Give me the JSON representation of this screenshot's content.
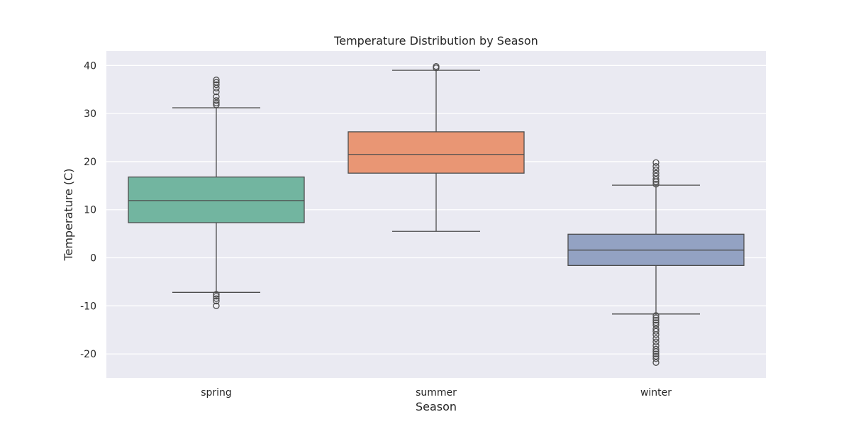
{
  "chart_data": {
    "type": "box",
    "title": "Temperature Distribution by Season",
    "xlabel": "Season",
    "ylabel": "Temperature (C)",
    "ylim": [
      -25,
      43
    ],
    "yticks": [
      -20,
      -10,
      0,
      10,
      20,
      30,
      40
    ],
    "grid": true,
    "categories": [
      "spring",
      "summer",
      "winter"
    ],
    "boxes": [
      {
        "category": "spring",
        "color": "#72b5a0",
        "whisker_low": -7.2,
        "q1": 7.3,
        "median": 11.9,
        "q3": 16.8,
        "whisker_high": 31.2,
        "outliers": [
          -10.0,
          -9.0,
          -8.5,
          -8.0,
          -7.6,
          31.8,
          32.2,
          32.7,
          33.5,
          34.5,
          35.3,
          36.0,
          36.5,
          37.0
        ]
      },
      {
        "category": "summer",
        "color": "#e99674",
        "whisker_low": 5.5,
        "q1": 17.6,
        "median": 21.5,
        "q3": 26.2,
        "whisker_high": 39.0,
        "outliers": [
          39.5,
          39.8
        ]
      },
      {
        "category": "winter",
        "color": "#93a2c3",
        "whisker_low": -11.7,
        "q1": -1.6,
        "median": 1.6,
        "q3": 4.9,
        "whisker_high": 15.1,
        "outliers": [
          -21.8,
          -21.0,
          -20.5,
          -20.0,
          -19.5,
          -19.0,
          -18.3,
          -17.5,
          -16.8,
          -16.0,
          -15.3,
          -14.8,
          -14.0,
          -13.5,
          -13.0,
          -12.5,
          -12.0,
          15.3,
          15.8,
          16.3,
          17.0,
          17.6,
          18.3,
          19.0,
          19.8
        ]
      }
    ],
    "style": {
      "background": "#eaeaf2",
      "gridline": "#ffffff",
      "line": "#4d4d4d"
    }
  }
}
